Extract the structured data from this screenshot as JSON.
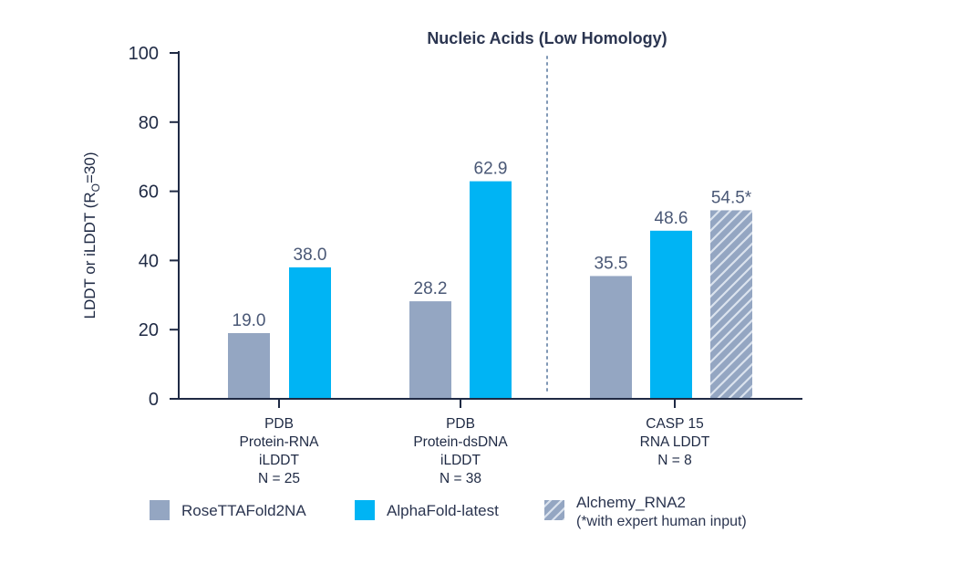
{
  "chart_data": {
    "type": "bar",
    "title": "Nucleic Acids (Low Homology)",
    "ylabel_main": "LDDT or iLDDT (R",
    "ylabel_sub": "O",
    "ylabel_tail": "=30)",
    "ylim": [
      0,
      100
    ],
    "yticks": [
      "0",
      "20",
      "40",
      "60",
      "80",
      "100"
    ],
    "grid": false,
    "legend_position": "bottom",
    "colors": {
      "RoseTTAFold2NA": "#94a6c2",
      "AlphaFold-latest": "#00b4f4",
      "Alchemy_RNA2": "#94a6c2",
      "axis": "#1f2a44",
      "divider": "#7f97b5"
    },
    "categories": [
      {
        "lines": [
          "PDB",
          "Protein-RNA",
          "iLDDT",
          "N = 25"
        ]
      },
      {
        "lines": [
          "PDB",
          "Protein-dsDNA",
          "iLDDT",
          "N = 38"
        ]
      },
      {
        "lines": [
          "CASP 15",
          "RNA LDDT",
          "N = 8"
        ]
      }
    ],
    "series": [
      {
        "name": "RoseTTAFold2NA",
        "values": [
          19.0,
          28.2,
          35.5
        ],
        "labels": [
          "19.0",
          "28.2",
          "35.5"
        ],
        "pattern": "solid"
      },
      {
        "name": "AlphaFold-latest",
        "values": [
          38.0,
          62.9,
          48.6
        ],
        "labels": [
          "38.0",
          "62.9",
          "48.6"
        ],
        "pattern": "solid"
      },
      {
        "name": "Alchemy_RNA2",
        "values": [
          null,
          null,
          54.5
        ],
        "labels": [
          null,
          null,
          "54.5*"
        ],
        "pattern": "hatched"
      }
    ],
    "legend": [
      {
        "lines": [
          "RoseTTAFold2NA"
        ],
        "pattern": "solid",
        "series": "RoseTTAFold2NA"
      },
      {
        "lines": [
          "AlphaFold-latest"
        ],
        "pattern": "solid",
        "series": "AlphaFold-latest"
      },
      {
        "lines": [
          "Alchemy_RNA2",
          "(*with expert human input)"
        ],
        "pattern": "hatched",
        "series": "Alchemy_RNA2"
      }
    ]
  }
}
